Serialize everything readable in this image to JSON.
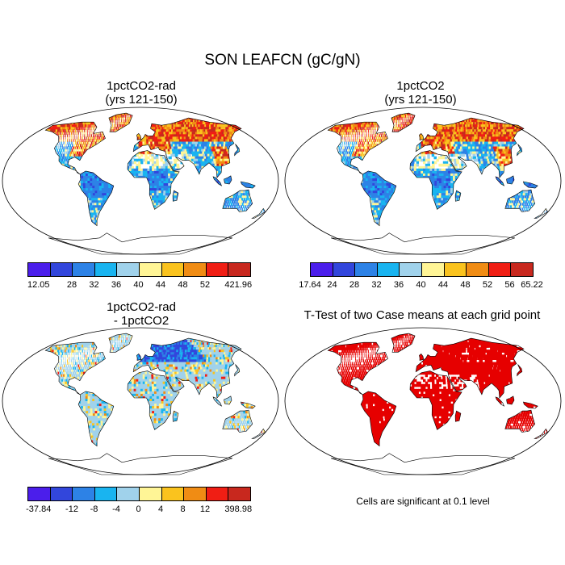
{
  "title": "SON LEAFCN (gC/gN)",
  "panels": [
    {
      "title_line1": "1pctCO2-rad",
      "title_line2": "(yrs 121-150)",
      "colorbar": {
        "colors": [
          "#4b1eeb",
          "#3246dc",
          "#2d82e6",
          "#19b4f0",
          "#a0d2eb",
          "#fff596",
          "#fac31e",
          "#f08c14",
          "#f01e14",
          "#c8281e"
        ],
        "labels": [
          "12.05",
          "",
          "28",
          "32",
          "36",
          "40",
          "44",
          "48",
          "52",
          "421.96"
        ]
      }
    },
    {
      "title_line1": "1pctCO2",
      "title_line2": "(yrs 121-150)",
      "colorbar": {
        "colors": [
          "#4b1eeb",
          "#3246dc",
          "#2d82e6",
          "#19b4f0",
          "#a0d2eb",
          "#fff596",
          "#fac31e",
          "#f08c14",
          "#f01e14",
          "#c8281e"
        ],
        "labels": [
          "17.64",
          "24",
          "28",
          "32",
          "36",
          "40",
          "44",
          "48",
          "52",
          "56",
          "65.22"
        ]
      }
    },
    {
      "title_line1": "1pctCO2-rad",
      "title_line2": "- 1pctCO2",
      "colorbar": {
        "colors": [
          "#4b1eeb",
          "#3246dc",
          "#2d82e6",
          "#19b4f0",
          "#a0d2eb",
          "#fff596",
          "#fac31e",
          "#f08c14",
          "#f01e14",
          "#c8281e"
        ],
        "labels": [
          "-37.84",
          "",
          "-12",
          "-8",
          "-4",
          "0",
          "4",
          "8",
          "12",
          "398.98"
        ]
      }
    },
    {
      "title": "T-Test of two Case means at each grid point",
      "note": "Cells are significant at 0.1 level",
      "significant_color": "#e60000"
    }
  ]
}
